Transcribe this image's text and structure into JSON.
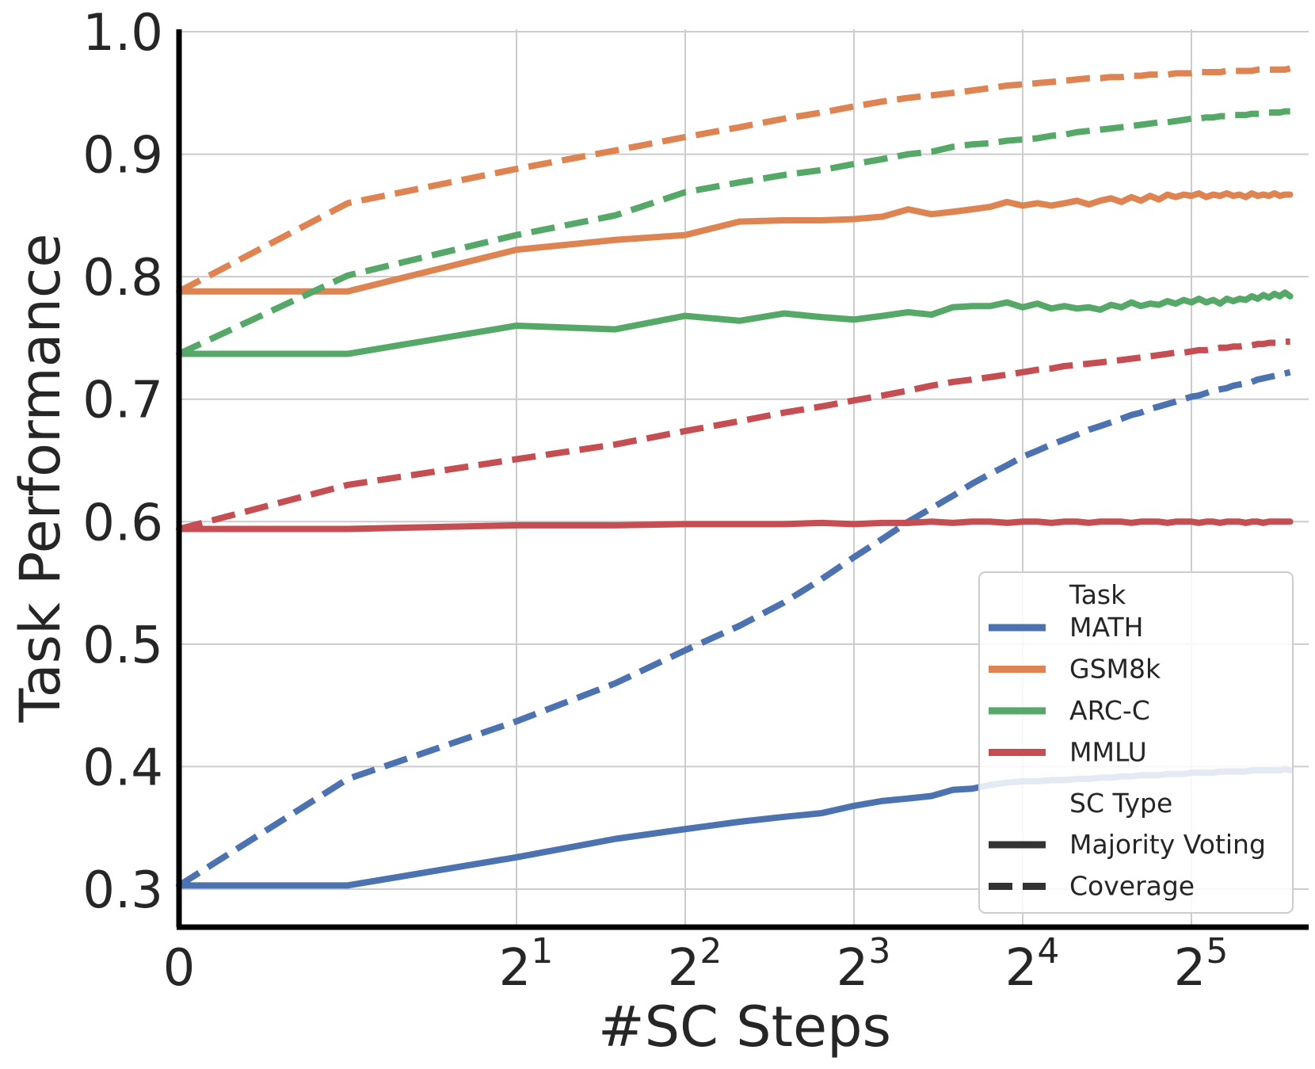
{
  "chart_data": {
    "type": "line",
    "title": "",
    "xlabel": "#SC Steps",
    "ylabel": "Task Performance",
    "x_scale": "symlog base 2",
    "xlim": [
      0,
      49
    ],
    "ylim": [
      0.28,
      1.0
    ],
    "grid": true,
    "x_ticks": [
      {
        "value": 0,
        "base": "0",
        "exp": ""
      },
      {
        "value": 2,
        "base": "2",
        "exp": "1"
      },
      {
        "value": 4,
        "base": "2",
        "exp": "2"
      },
      {
        "value": 8,
        "base": "2",
        "exp": "3"
      },
      {
        "value": 16,
        "base": "2",
        "exp": "4"
      },
      {
        "value": 32,
        "base": "2",
        "exp": "5"
      }
    ],
    "y_ticks": [
      "0.3",
      "0.4",
      "0.5",
      "0.6",
      "0.7",
      "0.8",
      "0.9",
      "1.0"
    ],
    "x": [
      0,
      1,
      2,
      3,
      4,
      5,
      6,
      7,
      8,
      9,
      10,
      11,
      12,
      13,
      14,
      15,
      16,
      17,
      18,
      19,
      20,
      21,
      22,
      23,
      24,
      25,
      26,
      27,
      28,
      29,
      30,
      31,
      32,
      33,
      34,
      35,
      36,
      37,
      38,
      39,
      40,
      41,
      42,
      43,
      44,
      45,
      46,
      47,
      48
    ],
    "series": [
      {
        "task": "MATH",
        "sc_type": "Majority Voting",
        "color": "#4c72b0",
        "values": [
          0.303,
          0.303,
          0.326,
          0.341,
          0.349,
          0.355,
          0.359,
          0.362,
          0.368,
          0.372,
          0.374,
          0.376,
          0.381,
          0.382,
          0.385,
          0.387,
          0.388,
          0.388,
          0.389,
          0.389,
          0.39,
          0.39,
          0.391,
          0.391,
          0.392,
          0.392,
          0.393,
          0.393,
          0.393,
          0.394,
          0.394,
          0.394,
          0.395,
          0.395,
          0.395,
          0.395,
          0.396,
          0.396,
          0.396,
          0.396,
          0.396,
          0.397,
          0.397,
          0.397,
          0.397,
          0.397,
          0.397,
          0.398,
          0.397
        ]
      },
      {
        "task": "MATH",
        "sc_type": "Coverage",
        "color": "#4c72b0",
        "values": [
          0.303,
          0.39,
          0.437,
          0.468,
          0.495,
          0.515,
          0.534,
          0.553,
          0.571,
          0.586,
          0.6,
          0.611,
          0.621,
          0.631,
          0.639,
          0.646,
          0.653,
          0.658,
          0.663,
          0.667,
          0.671,
          0.675,
          0.678,
          0.681,
          0.684,
          0.687,
          0.689,
          0.692,
          0.694,
          0.696,
          0.698,
          0.7,
          0.702,
          0.703,
          0.705,
          0.707,
          0.708,
          0.709,
          0.711,
          0.712,
          0.713,
          0.714,
          0.716,
          0.717,
          0.718,
          0.719,
          0.72,
          0.721,
          0.722
        ]
      },
      {
        "task": "GSM8k",
        "sc_type": "Majority Voting",
        "color": "#dd8452",
        "values": [
          0.788,
          0.788,
          0.822,
          0.83,
          0.834,
          0.845,
          0.846,
          0.846,
          0.847,
          0.849,
          0.855,
          0.851,
          0.853,
          0.855,
          0.857,
          0.861,
          0.858,
          0.86,
          0.858,
          0.86,
          0.862,
          0.859,
          0.862,
          0.864,
          0.861,
          0.865,
          0.862,
          0.866,
          0.863,
          0.867,
          0.865,
          0.867,
          0.866,
          0.868,
          0.865,
          0.867,
          0.866,
          0.868,
          0.866,
          0.867,
          0.865,
          0.868,
          0.866,
          0.867,
          0.866,
          0.868,
          0.866,
          0.867,
          0.867
        ]
      },
      {
        "task": "GSM8k",
        "sc_type": "Coverage",
        "color": "#dd8452",
        "values": [
          0.788,
          0.86,
          0.888,
          0.903,
          0.914,
          0.922,
          0.929,
          0.934,
          0.939,
          0.943,
          0.946,
          0.948,
          0.95,
          0.952,
          0.954,
          0.956,
          0.957,
          0.958,
          0.959,
          0.96,
          0.961,
          0.962,
          0.962,
          0.963,
          0.963,
          0.964,
          0.964,
          0.965,
          0.965,
          0.965,
          0.966,
          0.966,
          0.966,
          0.967,
          0.967,
          0.967,
          0.967,
          0.968,
          0.968,
          0.968,
          0.968,
          0.968,
          0.969,
          0.969,
          0.969,
          0.969,
          0.969,
          0.969,
          0.97
        ]
      },
      {
        "task": "ARC-C",
        "sc_type": "Majority Voting",
        "color": "#55a868",
        "values": [
          0.737,
          0.737,
          0.76,
          0.757,
          0.768,
          0.764,
          0.77,
          0.767,
          0.765,
          0.768,
          0.771,
          0.769,
          0.775,
          0.776,
          0.776,
          0.779,
          0.775,
          0.778,
          0.774,
          0.776,
          0.774,
          0.775,
          0.773,
          0.777,
          0.775,
          0.779,
          0.776,
          0.778,
          0.777,
          0.78,
          0.778,
          0.781,
          0.779,
          0.782,
          0.779,
          0.781,
          0.778,
          0.782,
          0.78,
          0.782,
          0.781,
          0.784,
          0.782,
          0.785,
          0.783,
          0.786,
          0.784,
          0.787,
          0.784
        ]
      },
      {
        "task": "ARC-C",
        "sc_type": "Coverage",
        "color": "#55a868",
        "values": [
          0.737,
          0.801,
          0.834,
          0.85,
          0.869,
          0.877,
          0.883,
          0.887,
          0.892,
          0.896,
          0.9,
          0.902,
          0.906,
          0.908,
          0.909,
          0.911,
          0.912,
          0.913,
          0.915,
          0.916,
          0.918,
          0.919,
          0.92,
          0.921,
          0.922,
          0.923,
          0.924,
          0.925,
          0.926,
          0.926,
          0.927,
          0.928,
          0.929,
          0.929,
          0.93,
          0.93,
          0.931,
          0.931,
          0.932,
          0.932,
          0.932,
          0.933,
          0.933,
          0.933,
          0.934,
          0.934,
          0.934,
          0.935,
          0.935
        ]
      },
      {
        "task": "MMLU",
        "sc_type": "Majority Voting",
        "color": "#c44e52",
        "values": [
          0.594,
          0.594,
          0.597,
          0.597,
          0.598,
          0.598,
          0.598,
          0.599,
          0.598,
          0.599,
          0.599,
          0.6,
          0.599,
          0.6,
          0.6,
          0.599,
          0.6,
          0.6,
          0.599,
          0.6,
          0.6,
          0.599,
          0.6,
          0.6,
          0.6,
          0.599,
          0.6,
          0.6,
          0.6,
          0.599,
          0.6,
          0.6,
          0.6,
          0.599,
          0.6,
          0.6,
          0.599,
          0.6,
          0.6,
          0.6,
          0.599,
          0.6,
          0.6,
          0.599,
          0.6,
          0.6,
          0.6,
          0.6,
          0.6
        ]
      },
      {
        "task": "MMLU",
        "sc_type": "Coverage",
        "color": "#c44e52",
        "values": [
          0.594,
          0.63,
          0.651,
          0.663,
          0.674,
          0.682,
          0.689,
          0.694,
          0.699,
          0.703,
          0.707,
          0.711,
          0.714,
          0.716,
          0.718,
          0.72,
          0.722,
          0.724,
          0.725,
          0.727,
          0.728,
          0.729,
          0.73,
          0.731,
          0.732,
          0.733,
          0.734,
          0.735,
          0.736,
          0.737,
          0.738,
          0.738,
          0.739,
          0.74,
          0.74,
          0.741,
          0.742,
          0.742,
          0.743,
          0.743,
          0.744,
          0.744,
          0.745,
          0.745,
          0.746,
          0.746,
          0.746,
          0.747,
          0.747
        ]
      }
    ],
    "legend": {
      "position": "lower-right",
      "task_title": "Task",
      "tasks": [
        {
          "label": "MATH",
          "color": "#4c72b0"
        },
        {
          "label": "GSM8k",
          "color": "#dd8452"
        },
        {
          "label": "ARC-C",
          "color": "#55a868"
        },
        {
          "label": "MMLU",
          "color": "#c44e52"
        }
      ],
      "type_title": "SC Type",
      "types": [
        {
          "label": "Majority Voting",
          "style": "solid"
        },
        {
          "label": "Coverage",
          "style": "dashed"
        }
      ]
    }
  }
}
